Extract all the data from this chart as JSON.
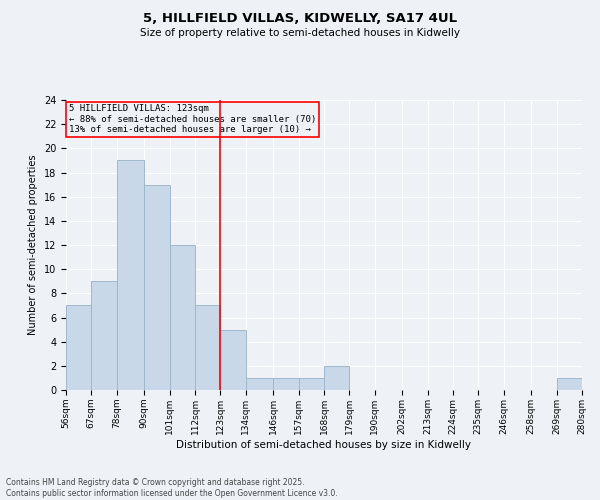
{
  "title": "5, HILLFIELD VILLAS, KIDWELLY, SA17 4UL",
  "subtitle": "Size of property relative to semi-detached houses in Kidwelly",
  "xlabel": "Distribution of semi-detached houses by size in Kidwelly",
  "ylabel": "Number of semi-detached properties",
  "bins": [
    56,
    67,
    78,
    90,
    101,
    112,
    123,
    134,
    146,
    157,
    168,
    179,
    190,
    202,
    213,
    224,
    235,
    246,
    258,
    269,
    280
  ],
  "counts": [
    7,
    9,
    19,
    17,
    12,
    7,
    5,
    1,
    1,
    1,
    2,
    0,
    0,
    0,
    0,
    0,
    0,
    0,
    0,
    1
  ],
  "bin_labels": [
    "56sqm",
    "67sqm",
    "78sqm",
    "90sqm",
    "101sqm",
    "112sqm",
    "123sqm",
    "134sqm",
    "146sqm",
    "157sqm",
    "168sqm",
    "179sqm",
    "190sqm",
    "202sqm",
    "213sqm",
    "224sqm",
    "235sqm",
    "246sqm",
    "258sqm",
    "269sqm",
    "280sqm"
  ],
  "property_size": 123,
  "bar_color": "#c8d8e8",
  "bar_edge_color": "#a0b8cc",
  "vline_color": "red",
  "ylim": [
    0,
    24
  ],
  "yticks": [
    0,
    2,
    4,
    6,
    8,
    10,
    12,
    14,
    16,
    18,
    20,
    22,
    24
  ],
  "annotation_title": "5 HILLFIELD VILLAS: 123sqm",
  "annotation_line1": "← 88% of semi-detached houses are smaller (70)",
  "annotation_line2": "13% of semi-detached houses are larger (10) →",
  "annotation_box_color": "red",
  "footer_line1": "Contains HM Land Registry data © Crown copyright and database right 2025.",
  "footer_line2": "Contains public sector information licensed under the Open Government Licence v3.0.",
  "background_color": "#eef2f7",
  "grid_color": "white"
}
